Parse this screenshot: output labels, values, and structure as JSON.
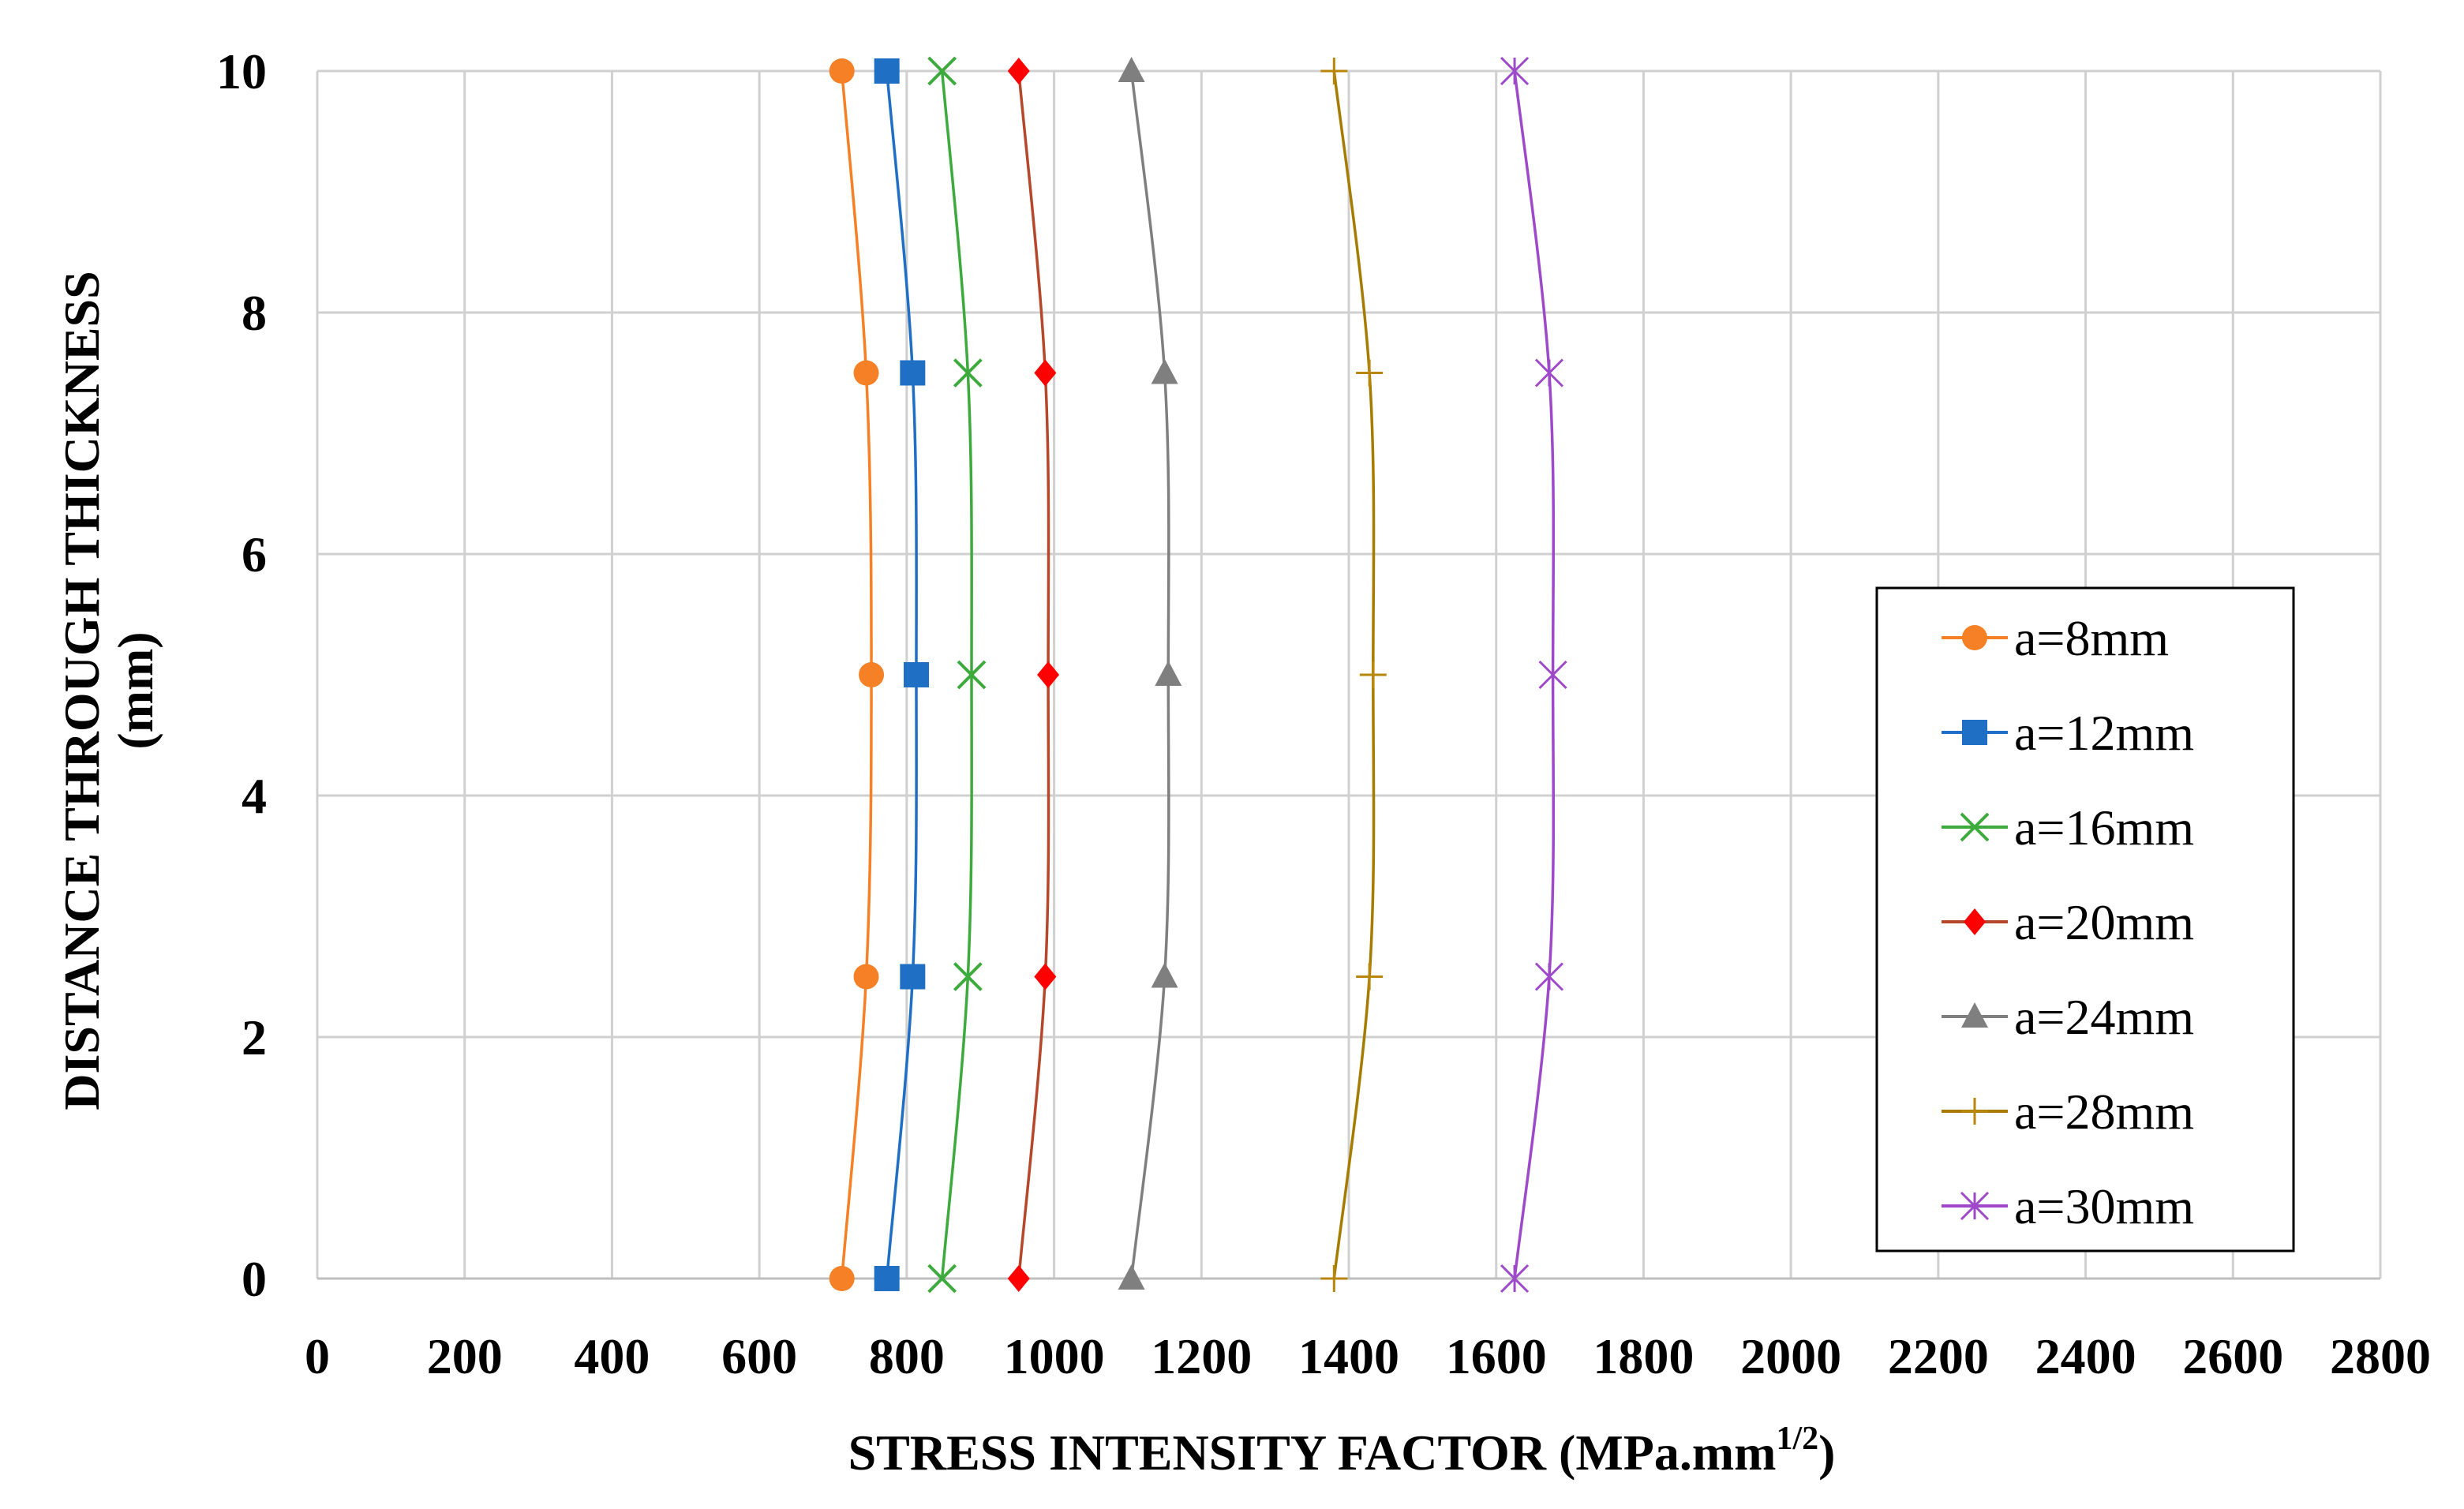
{
  "chart_data": {
    "type": "line",
    "title": "",
    "xlabel": "STRESS INTENSITY FACTOR (MPa.mm",
    "xlabel_superscript": "1/2",
    "xlabel_suffix": ")",
    "ylabel_line1": "DISTANCE THROUGH THICKNESS",
    "ylabel_line2": "(mm)",
    "xlim": [
      0,
      2800
    ],
    "ylim": [
      0,
      10
    ],
    "x_ticks": [
      "0",
      "200",
      "400",
      "600",
      "800",
      "1000",
      "1200",
      "1400",
      "1600",
      "1800",
      "2000",
      "2200",
      "2400",
      "2600",
      "2800"
    ],
    "y_ticks": [
      "0",
      "2",
      "4",
      "6",
      "8",
      "10"
    ],
    "grid": true,
    "legend_position": "right",
    "y": [
      0,
      2.5,
      5,
      7.5,
      10
    ],
    "series": [
      {
        "name": "a=8mm",
        "marker": "circle",
        "color": "#F58025",
        "x": [
          712,
          745,
          752,
          745,
          712
        ]
      },
      {
        "name": "a=12mm",
        "marker": "square",
        "color": "#1F6FC5",
        "x": [
          773,
          808,
          813,
          808,
          773
        ]
      },
      {
        "name": "a=16mm",
        "marker": "x",
        "color": "#3DAA3D",
        "x": [
          848,
          883,
          888,
          883,
          848
        ]
      },
      {
        "name": "a=20mm",
        "marker": "diamond",
        "color": "#FF0000",
        "x": [
          952,
          988,
          992,
          988,
          952
        ]
      },
      {
        "name": "a=24mm",
        "marker": "triangle",
        "color": "#7F7F7F",
        "x": [
          1105,
          1150,
          1155,
          1150,
          1105
        ]
      },
      {
        "name": "a=28mm",
        "marker": "plus",
        "color": "#B8860B",
        "x": [
          1380,
          1428,
          1433,
          1428,
          1380
        ]
      },
      {
        "name": "a=30mm",
        "marker": "asterisk",
        "color": "#9E49C9",
        "x": [
          1625,
          1672,
          1677,
          1672,
          1625
        ]
      }
    ],
    "line_colors": {
      "a=8mm": "#F58025",
      "a=12mm": "#1F6FC5",
      "a=16mm": "#3DAA3D",
      "a=20mm": "#B5472A",
      "a=24mm": "#7F7F7F",
      "a=28mm": "#A67C00",
      "a=30mm": "#9E49C9"
    }
  }
}
